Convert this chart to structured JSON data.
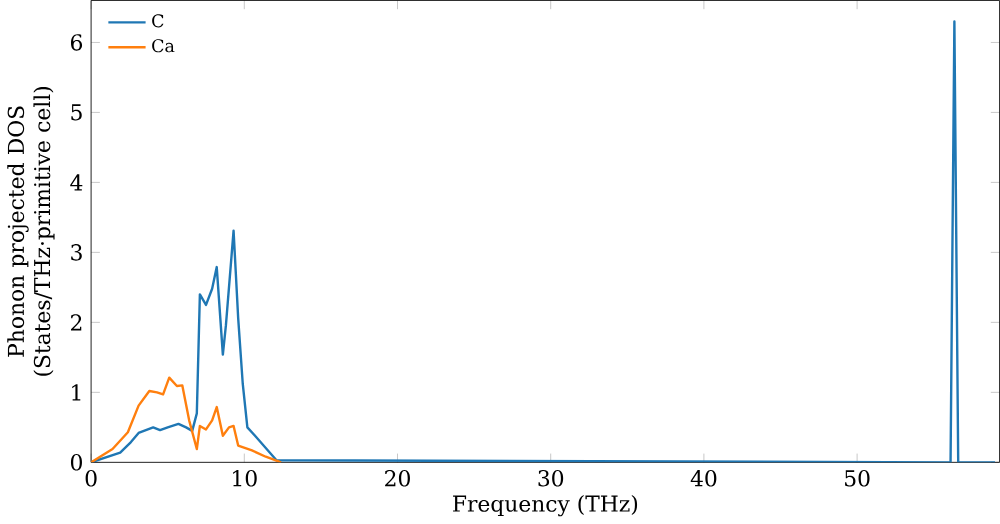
{
  "chart_data": {
    "type": "line",
    "xlabel": "Frequency (THz)",
    "ylabel": "Phonon projected DOS\n(States/THz·primitive cell)",
    "xlim": [
      0,
      59.3
    ],
    "ylim": [
      0,
      6.6
    ],
    "xticks": [
      0,
      10,
      20,
      30,
      40,
      50
    ],
    "yticks": [
      0,
      1,
      2,
      3,
      4,
      5,
      6
    ],
    "legend": "top left",
    "grid": false,
    "series": [
      {
        "name": "C",
        "color": "#1f77b4",
        "x": [
          0,
          1.9,
          2.6,
          3.1,
          4.05,
          4.5,
          5.0,
          5.7,
          6.2,
          6.6,
          6.9,
          7.1,
          7.5,
          7.9,
          8.2,
          8.6,
          8.8,
          9.3,
          9.6,
          9.9,
          10.2,
          10.7,
          12.1,
          56.1,
          56.35,
          56.6,
          59
        ],
        "values": [
          0,
          0.14,
          0.29,
          0.42,
          0.5,
          0.46,
          0.5,
          0.55,
          0.5,
          0.45,
          0.7,
          2.4,
          2.25,
          2.48,
          2.79,
          1.54,
          1.96,
          3.31,
          2.06,
          1.12,
          0.5,
          0.38,
          0.03,
          0,
          6.3,
          0,
          0
        ]
      },
      {
        "name": "Ca",
        "color": "#ff7f0e",
        "x": [
          0,
          1.4,
          2.4,
          3.1,
          3.8,
          4.3,
          4.7,
          5.1,
          5.6,
          5.95,
          6.4,
          6.9,
          7.1,
          7.5,
          7.9,
          8.2,
          8.6,
          9.0,
          9.3,
          9.6,
          10.5,
          11.4,
          12.4
        ],
        "values": [
          0,
          0.19,
          0.43,
          0.81,
          1.02,
          1.0,
          0.97,
          1.21,
          1.09,
          1.1,
          0.6,
          0.19,
          0.52,
          0.47,
          0.6,
          0.79,
          0.38,
          0.5,
          0.52,
          0.24,
          0.17,
          0.08,
          0
        ]
      }
    ]
  }
}
